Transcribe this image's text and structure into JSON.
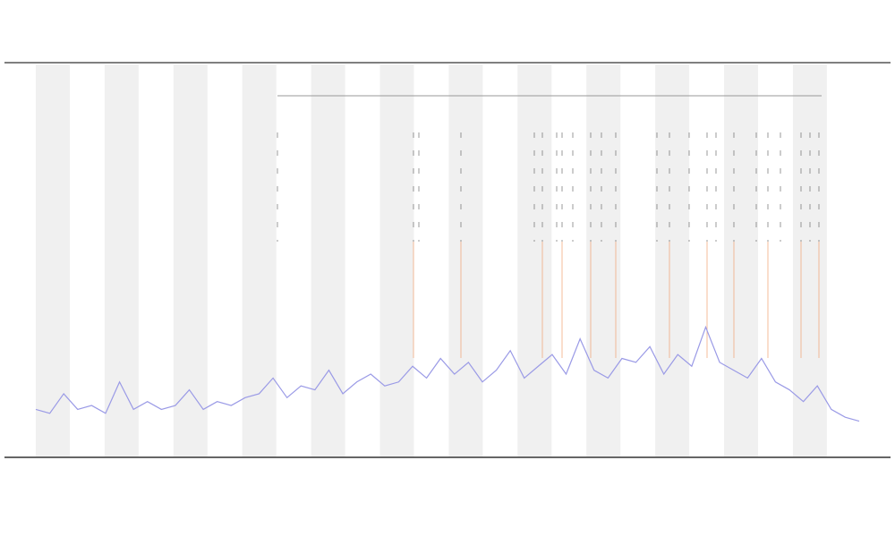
{
  "chart_data": {
    "type": "line",
    "x": [
      0,
      1,
      2,
      3,
      4,
      5,
      6,
      7,
      8,
      9,
      10,
      11,
      12,
      13,
      14,
      15,
      16,
      17,
      18,
      19,
      20,
      21,
      22,
      23,
      24,
      25,
      26,
      27,
      28,
      29,
      30,
      31,
      32,
      33,
      34,
      35,
      36,
      37,
      38,
      39,
      40,
      41,
      42,
      43,
      44,
      45,
      46,
      47,
      48,
      49,
      50,
      51,
      52,
      53,
      54,
      55,
      56,
      57,
      58,
      59
    ],
    "values": [
      12,
      11,
      16,
      12,
      13,
      11,
      19,
      12,
      14,
      12,
      13,
      17,
      12,
      14,
      13,
      15,
      16,
      20,
      15,
      18,
      17,
      22,
      16,
      19,
      21,
      18,
      19,
      23,
      20,
      25,
      21,
      24,
      19,
      22,
      27,
      20,
      23,
      26,
      21,
      30,
      22,
      20,
      25,
      24,
      28,
      21,
      26,
      23,
      33,
      24,
      22,
      20,
      25,
      19,
      17,
      14,
      18,
      12,
      10,
      9
    ],
    "color": "#9a9ae6",
    "xlim": [
      0,
      59
    ],
    "ylim": [
      0,
      100
    ]
  }
}
